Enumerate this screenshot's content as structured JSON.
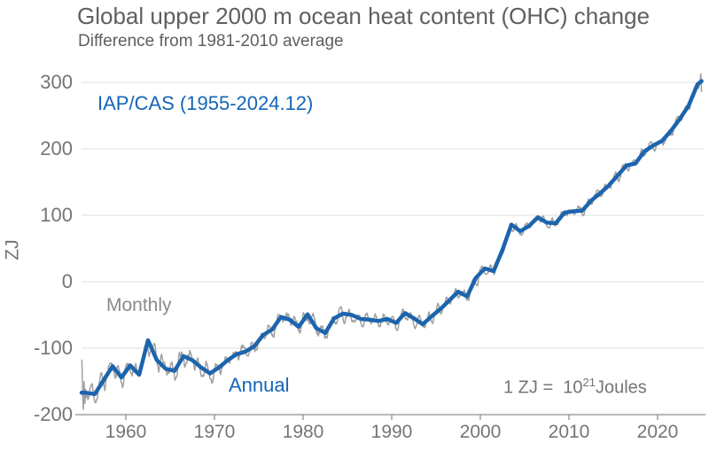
{
  "colors": {
    "title_text": "#5f5f5f",
    "tick_text": "#757575",
    "annotation_text": "#757575",
    "monthly_text": "#8a8a8a",
    "blue_text": "#1565b8",
    "annual_line": "#1c64ae",
    "monthly_line": "#a0a0a0",
    "gridline": "#dcdcdc",
    "axis_line": "#8f8f8f",
    "background": "#ffffff"
  },
  "chart_data": {
    "type": "line",
    "title": "Global upper 2000 m ocean heat content (OHC) change",
    "subtitle": "Difference from 1981-2010 average",
    "series_label": "IAP/CAS (1955-2024.12)",
    "ylabel": "ZJ",
    "xlabel": "",
    "xlim": [
      1955,
      2025
    ],
    "ylim": [
      -200,
      300
    ],
    "x_ticks": [
      1960,
      1970,
      1980,
      1990,
      2000,
      2010,
      2020
    ],
    "y_ticks": [
      -200,
      -100,
      0,
      100,
      200,
      300
    ],
    "grid": "horizontal-only",
    "legend_position": "none",
    "annotations": {
      "monthly": "Monthly",
      "annual": "Annual",
      "unit_prefix": "1 ZJ =  10",
      "unit_exp": "21",
      "unit_suffix": "Joules"
    },
    "series": [
      {
        "name": "Annual",
        "style": "thick-blue",
        "start_year": 1955,
        "values": [
          -167,
          -169,
          -148,
          -127,
          -144,
          -126,
          -140,
          -88,
          -118,
          -131,
          -134,
          -112,
          -118,
          -129,
          -138,
          -129,
          -118,
          -109,
          -105,
          -97,
          -80,
          -72,
          -53,
          -57,
          -68,
          -49,
          -70,
          -77,
          -55,
          -48,
          -50,
          -56,
          -57,
          -59,
          -56,
          -62,
          -47,
          -55,
          -64,
          -52,
          -41,
          -28,
          -15,
          -22,
          6,
          20,
          16,
          48,
          86,
          76,
          84,
          97,
          89,
          88,
          104,
          106,
          107,
          122,
          133,
          145,
          160,
          175,
          178,
          196,
          205,
          212,
          227,
          245,
          265,
          297
        ],
        "end_extension_value": 302
      },
      {
        "name": "Monthly",
        "style": "thin-gray",
        "derived_from": "Annual",
        "seed": 11,
        "seasonal_amplitude_by_era": [
          [
            1955,
            15
          ],
          [
            1970,
            11
          ],
          [
            1985,
            9
          ],
          [
            2000,
            7
          ],
          [
            2015,
            8
          ]
        ],
        "start_override": [
          -118,
          -170,
          -192,
          -150,
          -183,
          -162,
          -174,
          -168
        ],
        "end_override": [
          300,
          313,
          286
        ]
      }
    ]
  }
}
